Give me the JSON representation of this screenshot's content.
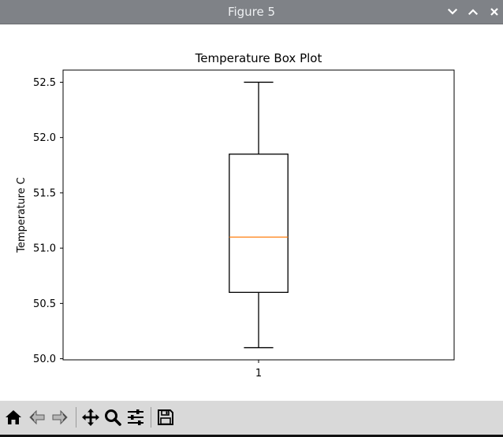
{
  "window": {
    "title": "Figure 5",
    "controls": {
      "minimize_icon": "chevron-down-icon",
      "maximize_icon": "chevron-up-icon",
      "close_icon": "close-icon"
    }
  },
  "toolbar": {
    "tools": [
      {
        "name": "home",
        "icon": "home-icon"
      },
      {
        "name": "back",
        "icon": "back-arrow-icon"
      },
      {
        "name": "forward",
        "icon": "forward-arrow-icon"
      },
      {
        "name": "pan",
        "icon": "move-icon"
      },
      {
        "name": "zoom",
        "icon": "magnifier-icon"
      },
      {
        "name": "configure-subplots",
        "icon": "sliders-icon"
      },
      {
        "name": "save",
        "icon": "floppy-disk-icon"
      }
    ]
  },
  "chart_data": {
    "type": "box",
    "title": "Temperature Box Plot",
    "xlabel": "",
    "ylabel": "Temperature C",
    "categories": [
      "1"
    ],
    "boxes": [
      {
        "category": "1",
        "whisker_low": 50.1,
        "q1": 50.6,
        "median": 51.1,
        "q3": 51.85,
        "whisker_high": 52.5
      }
    ],
    "ylim": [
      49.99,
      52.61
    ],
    "yticks": [
      "50.0",
      "50.5",
      "51.0",
      "51.5",
      "52.0",
      "52.5"
    ],
    "ytick_values": [
      50.0,
      50.5,
      51.0,
      51.5,
      52.0,
      52.5
    ],
    "grid": false,
    "colors": {
      "box": "#000000",
      "median": "#ff7f0e"
    }
  }
}
